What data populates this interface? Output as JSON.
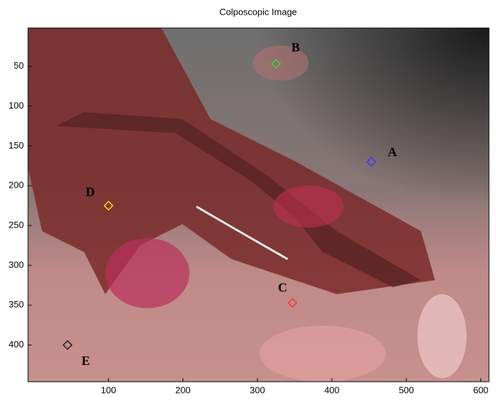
{
  "chart_data": {
    "type": "scatter",
    "title": "Colposcopic Image",
    "points": [
      {
        "label": "A",
        "x": 453,
        "y": 170,
        "color": "#3a3aff"
      },
      {
        "label": "B",
        "x": 325,
        "y": 47,
        "color": "#33dd33"
      },
      {
        "label": "C",
        "x": 347,
        "y": 347,
        "color": "#ff3030"
      },
      {
        "label": "D",
        "x": 100,
        "y": 225,
        "color": "#ffdd00"
      },
      {
        "label": "E",
        "x": 45,
        "y": 400,
        "color": "#222222"
      }
    ],
    "xlim": [
      -8,
      611
    ],
    "ylim": [
      2,
      446
    ],
    "y_reversed": true,
    "xticks": [
      100,
      200,
      300,
      400,
      500,
      600
    ],
    "yticks": [
      50,
      100,
      150,
      200,
      250,
      300,
      350,
      400
    ]
  }
}
